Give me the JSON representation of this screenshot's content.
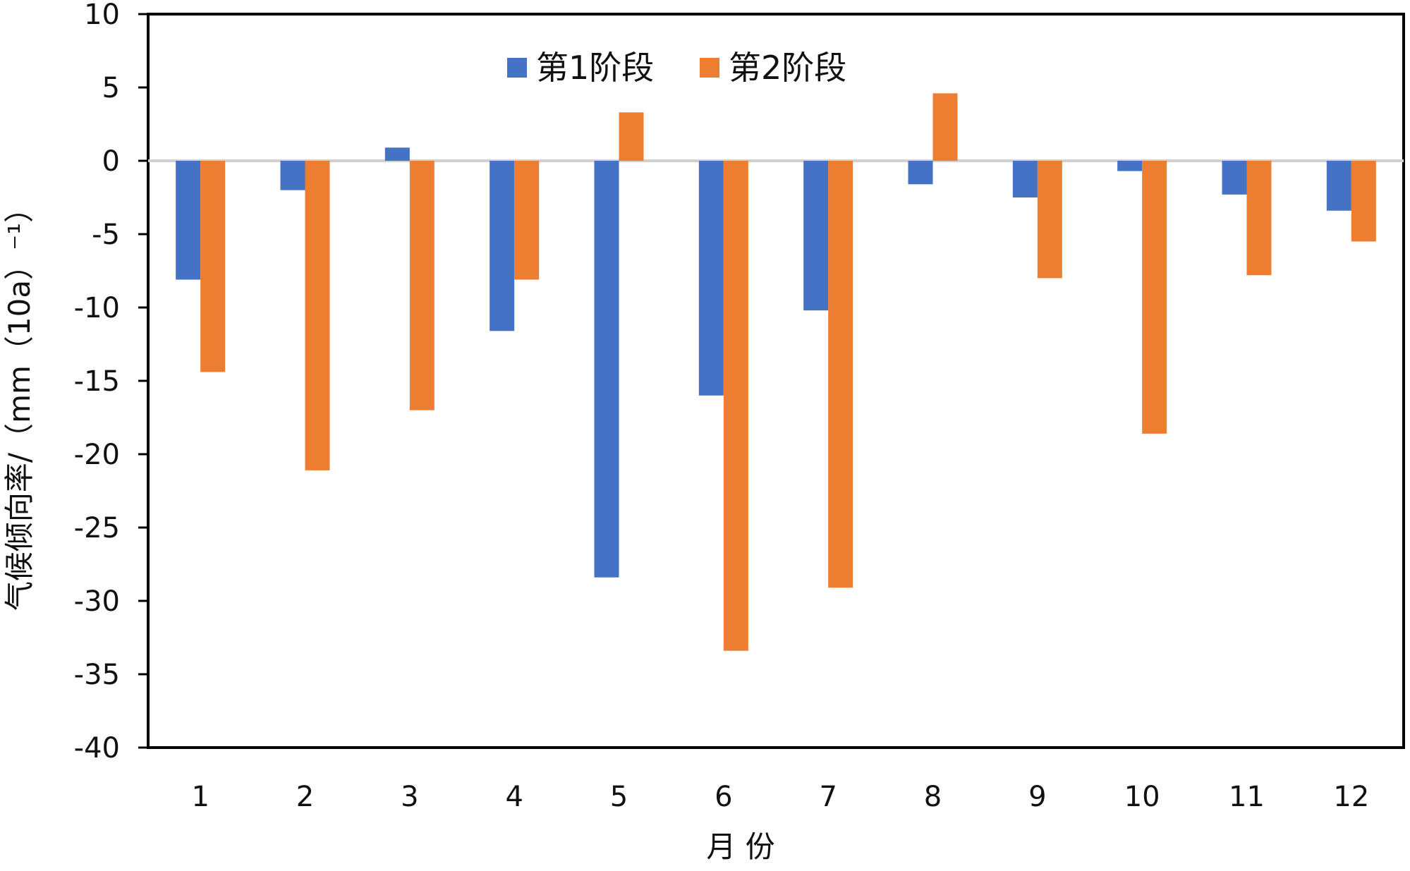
{
  "chart_data": {
    "type": "bar",
    "title": "",
    "xlabel": "月 份",
    "ylabel": "气候倾向率/（mm（10a）⁻¹）",
    "categories": [
      "1",
      "2",
      "3",
      "4",
      "5",
      "6",
      "7",
      "8",
      "9",
      "10",
      "11",
      "12"
    ],
    "series": [
      {
        "name": "第1阶段",
        "color": "#4472C4",
        "values": [
          -8.1,
          -2.0,
          0.9,
          -11.6,
          -28.4,
          -16.0,
          -10.2,
          -1.6,
          -2.5,
          -0.7,
          -2.3,
          -3.4
        ]
      },
      {
        "name": "第2阶段",
        "color": "#ED7D31",
        "values": [
          -14.4,
          -21.1,
          -17.0,
          -8.1,
          3.3,
          -33.4,
          -29.1,
          4.6,
          -8.0,
          -18.6,
          -7.8,
          -5.5
        ]
      }
    ],
    "ylim": [
      -40,
      10
    ],
    "yticks": [
      10,
      5,
      0,
      -5,
      -10,
      -15,
      -20,
      -25,
      -30,
      -35,
      -40
    ],
    "zero_line_color": "#D0D0D0",
    "grid": false,
    "legend_position": "top-center"
  }
}
